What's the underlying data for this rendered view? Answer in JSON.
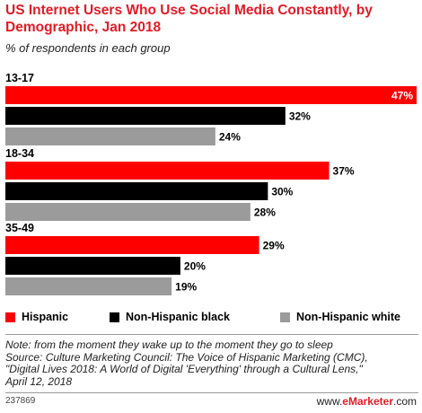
{
  "title": "US Internet Users Who Use Social Media Constantly, by Demographic, Jan 2018",
  "subtitle": "% of respondents in each group",
  "colors": {
    "hispanic": "#ff0000",
    "black": "#000000",
    "white": "#9b9b9b",
    "title": "#e31b23"
  },
  "chart_data": {
    "type": "bar",
    "orientation": "horizontal",
    "categories": [
      "13-17",
      "18-34",
      "35-49"
    ],
    "series": [
      {
        "name": "Hispanic",
        "values": [
          47,
          37,
          29
        ],
        "labels": [
          "47%",
          "37%",
          "29%"
        ]
      },
      {
        "name": "Non-Hispanic black",
        "values": [
          32,
          30,
          20
        ],
        "labels": [
          "32%",
          "30%",
          "20%"
        ]
      },
      {
        "name": "Non-Hispanic white",
        "values": [
          24,
          28,
          19
        ],
        "labels": [
          "24%",
          "28%",
          "19%"
        ]
      }
    ],
    "xlim": [
      0,
      47
    ],
    "legend_position": "bottom",
    "grid": false
  },
  "note": [
    "Note: from the moment they wake up to the moment they go to sleep",
    "Source: Culture Marketing Council: The Voice of Hispanic Marketing (CMC),",
    "\"Digital Lives 2018: A World of Digital 'Everything' through a Cultural Lens,\"",
    "April 12, 2018"
  ],
  "footer": {
    "id": "237869",
    "brand_prefix": "www.",
    "brand_name": "eMarketer",
    "brand_suffix": ".com"
  }
}
